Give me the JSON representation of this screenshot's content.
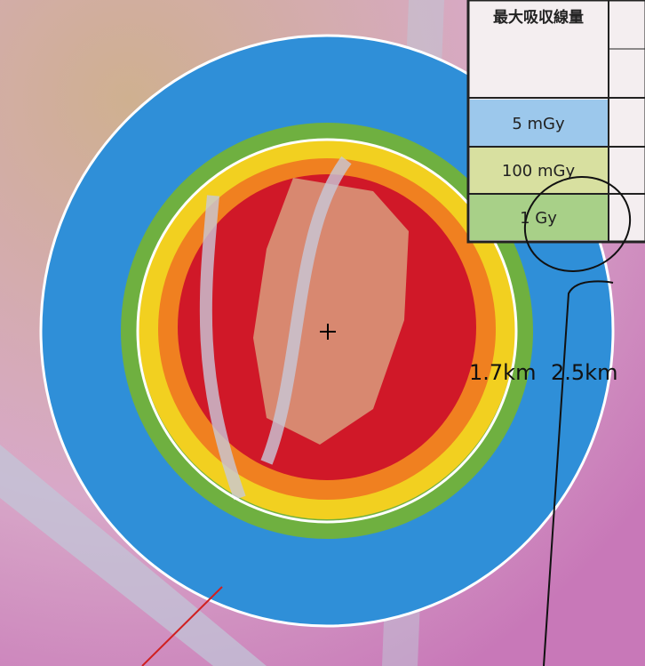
{
  "legend": {
    "header": "最大吸収線量",
    "rows": [
      "5 mGy",
      "100 mGy",
      "1 Gy"
    ]
  },
  "labels": {
    "inner_radius": "1.7km",
    "outer_radius": "2.5km"
  }
}
